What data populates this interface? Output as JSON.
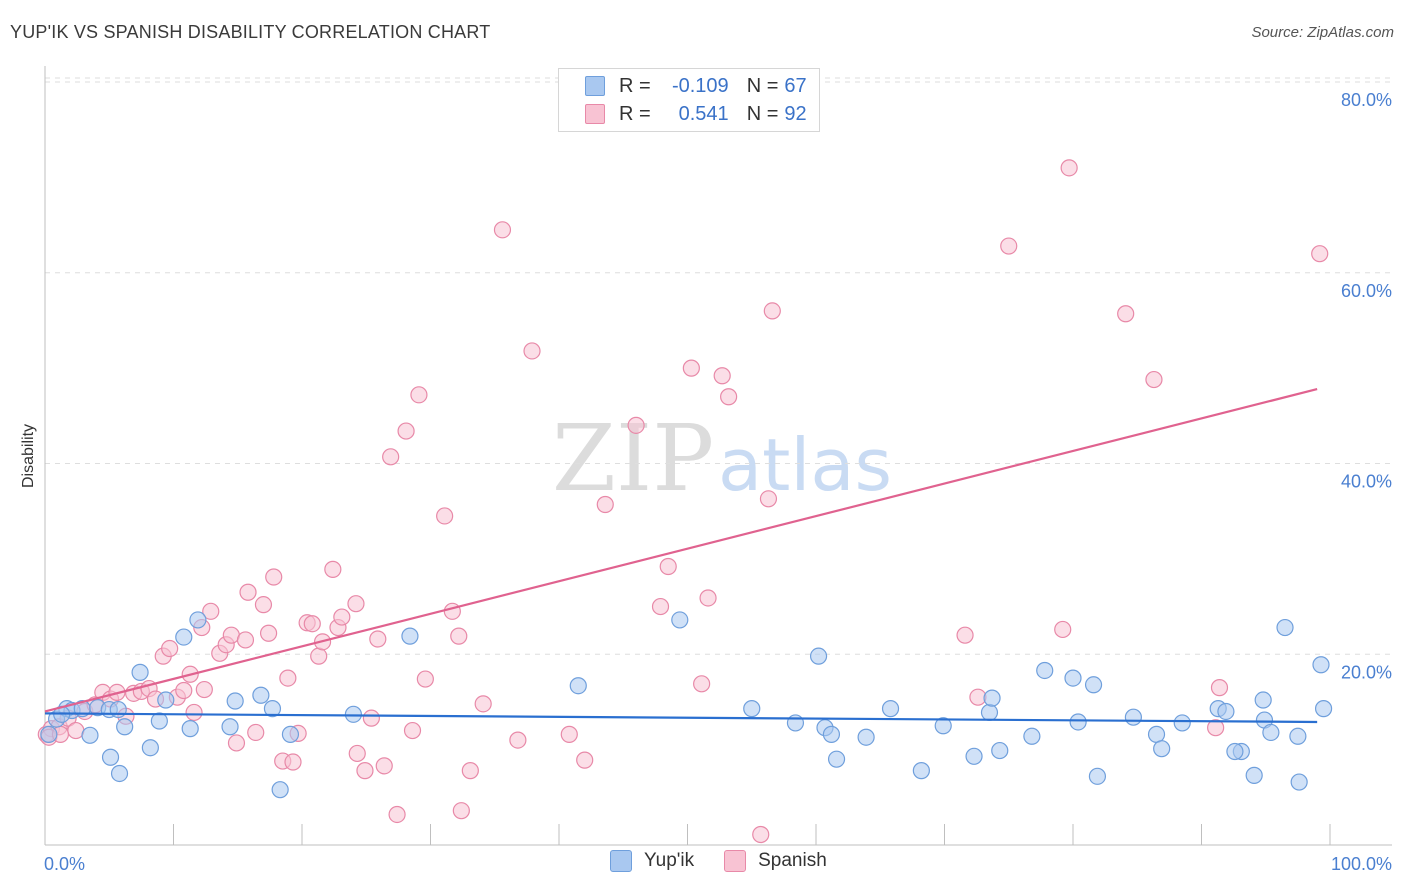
{
  "header": {
    "title": "YUP'IK VS SPANISH DISABILITY CORRELATION CHART",
    "source": "Source: ZipAtlas.com"
  },
  "watermark": {
    "zip": "ZIP",
    "atlas": "atlas"
  },
  "legend": {
    "rows": [
      {
        "r_label": "R =",
        "r_value": "-0.109",
        "n_label": "N =",
        "n_value": "67",
        "color": "#a9c8f0",
        "border": "#6f9fdc"
      },
      {
        "r_label": "R =",
        "r_value": "0.541",
        "n_label": "N =",
        "n_value": "92",
        "color": "#f8c3d3",
        "border": "#e889a8"
      }
    ]
  },
  "bottom_legend": {
    "items": [
      {
        "label": "Yup'ik"
      },
      {
        "label": "Spanish"
      }
    ]
  },
  "colors": {
    "yupik_fill": "#a9c8f0",
    "yupik_stroke": "#6f9fdc",
    "yupik_line": "#2a6fd0",
    "spanish_fill": "#f8c3d3",
    "spanish_stroke": "#e889a8",
    "spanish_line": "#e0628f",
    "tick_text": "#4a7fd0"
  },
  "chart_data": {
    "type": "scatter",
    "title": "YUP'IK VS SPANISH DISABILITY CORRELATION CHART",
    "xlabel": "",
    "ylabel": "Disability",
    "xlim": [
      0,
      100
    ],
    "ylim": [
      0,
      80
    ],
    "x_tick_labels": [
      "0.0%",
      "100.0%"
    ],
    "y_ticks": [
      20,
      40,
      60,
      80
    ],
    "y_tick_labels": [
      "20.0%",
      "40.0%",
      "60.0%",
      "80.0%"
    ],
    "grid": "horizontal dashed",
    "series": [
      {
        "name": "Yup'ik",
        "r": -0.109,
        "n": 67,
        "trend": {
          "x": [
            0,
            99
          ],
          "y": [
            13.8,
            12.9
          ]
        },
        "points": [
          [
            0.3,
            11.6
          ],
          [
            0.9,
            13.2
          ],
          [
            1.7,
            14.3
          ],
          [
            2.1,
            14.1
          ],
          [
            2.9,
            14.3
          ],
          [
            3.5,
            11.5
          ],
          [
            4.1,
            14.4
          ],
          [
            5.0,
            14.2
          ],
          [
            5.7,
            14.2
          ],
          [
            5.1,
            9.2
          ],
          [
            5.8,
            7.5
          ],
          [
            6.2,
            12.4
          ],
          [
            7.4,
            18.1
          ],
          [
            8.2,
            10.2
          ],
          [
            8.9,
            13.0
          ],
          [
            9.4,
            15.2
          ],
          [
            10.8,
            21.8
          ],
          [
            11.3,
            12.2
          ],
          [
            11.9,
            23.6
          ],
          [
            14.4,
            12.4
          ],
          [
            14.8,
            15.1
          ],
          [
            16.8,
            15.7
          ],
          [
            17.7,
            14.3
          ],
          [
            18.3,
            5.8
          ],
          [
            19.1,
            11.6
          ],
          [
            24.0,
            13.7
          ],
          [
            28.4,
            21.9
          ],
          [
            41.5,
            16.7
          ],
          [
            49.4,
            23.6
          ],
          [
            55.0,
            14.3
          ],
          [
            58.4,
            12.8
          ],
          [
            60.2,
            19.8
          ],
          [
            60.7,
            12.3
          ],
          [
            61.2,
            11.6
          ],
          [
            61.6,
            9.0
          ],
          [
            63.9,
            11.3
          ],
          [
            65.8,
            14.3
          ],
          [
            68.2,
            7.8
          ],
          [
            69.9,
            12.5
          ],
          [
            72.3,
            9.3
          ],
          [
            73.5,
            13.9
          ],
          [
            73.7,
            15.4
          ],
          [
            74.3,
            9.9
          ],
          [
            76.8,
            11.4
          ],
          [
            77.8,
            18.3
          ],
          [
            80.0,
            17.5
          ],
          [
            80.4,
            12.9
          ],
          [
            81.6,
            16.8
          ],
          [
            81.9,
            7.2
          ],
          [
            84.7,
            13.4
          ],
          [
            86.5,
            11.6
          ],
          [
            86.9,
            10.1
          ],
          [
            88.5,
            12.8
          ],
          [
            91.3,
            14.3
          ],
          [
            91.9,
            14.0
          ],
          [
            93.1,
            9.8
          ],
          [
            94.1,
            7.3
          ],
          [
            94.8,
            15.2
          ],
          [
            94.9,
            13.1
          ],
          [
            95.4,
            11.8
          ],
          [
            96.5,
            22.8
          ],
          [
            97.5,
            11.4
          ],
          [
            97.6,
            6.6
          ],
          [
            99.3,
            18.9
          ],
          [
            99.5,
            14.3
          ],
          [
            92.6,
            9.8
          ],
          [
            1.3,
            13.7
          ]
        ]
      },
      {
        "name": "Spanish",
        "r": 0.541,
        "n": 92,
        "trend": {
          "x": [
            0,
            99
          ],
          "y": [
            14.0,
            47.8
          ]
        },
        "points": [
          [
            0.1,
            11.6
          ],
          [
            0.5,
            12.2
          ],
          [
            1.1,
            12.4
          ],
          [
            1.8,
            13.3
          ],
          [
            2.4,
            12.0
          ],
          [
            3.1,
            14.0
          ],
          [
            3.9,
            14.7
          ],
          [
            4.5,
            16.0
          ],
          [
            5.1,
            15.3
          ],
          [
            5.6,
            16.0
          ],
          [
            6.3,
            13.5
          ],
          [
            6.9,
            15.9
          ],
          [
            7.5,
            16.1
          ],
          [
            8.1,
            16.4
          ],
          [
            8.6,
            15.3
          ],
          [
            9.2,
            19.8
          ],
          [
            9.7,
            20.6
          ],
          [
            10.3,
            15.5
          ],
          [
            10.8,
            16.2
          ],
          [
            11.3,
            17.9
          ],
          [
            11.6,
            13.9
          ],
          [
            12.2,
            22.8
          ],
          [
            12.4,
            16.3
          ],
          [
            12.9,
            24.5
          ],
          [
            13.6,
            20.1
          ],
          [
            14.1,
            21.0
          ],
          [
            14.5,
            22.0
          ],
          [
            14.9,
            10.7
          ],
          [
            15.6,
            21.5
          ],
          [
            15.8,
            26.5
          ],
          [
            16.4,
            11.8
          ],
          [
            17.0,
            25.2
          ],
          [
            17.4,
            22.2
          ],
          [
            17.8,
            28.1
          ],
          [
            18.5,
            8.8
          ],
          [
            18.9,
            17.5
          ],
          [
            19.3,
            8.7
          ],
          [
            19.7,
            11.7
          ],
          [
            20.4,
            23.3
          ],
          [
            20.8,
            23.2
          ],
          [
            21.3,
            19.8
          ],
          [
            21.6,
            21.3
          ],
          [
            22.4,
            28.9
          ],
          [
            22.8,
            22.8
          ],
          [
            23.1,
            23.9
          ],
          [
            24.2,
            25.3
          ],
          [
            24.3,
            9.6
          ],
          [
            24.9,
            7.8
          ],
          [
            25.4,
            13.3
          ],
          [
            25.9,
            21.6
          ],
          [
            26.4,
            8.3
          ],
          [
            26.9,
            40.7
          ],
          [
            27.4,
            3.2
          ],
          [
            28.1,
            43.4
          ],
          [
            28.6,
            12.0
          ],
          [
            29.1,
            47.2
          ],
          [
            29.6,
            17.4
          ],
          [
            31.1,
            34.5
          ],
          [
            31.7,
            24.5
          ],
          [
            32.2,
            21.9
          ],
          [
            32.4,
            3.6
          ],
          [
            33.1,
            7.8
          ],
          [
            34.1,
            14.8
          ],
          [
            35.6,
            64.5
          ],
          [
            36.8,
            11.0
          ],
          [
            37.9,
            51.8
          ],
          [
            40.8,
            11.6
          ],
          [
            42.0,
            8.9
          ],
          [
            43.6,
            35.7
          ],
          [
            46.0,
            44.0
          ],
          [
            47.9,
            25.0
          ],
          [
            48.5,
            29.2
          ],
          [
            50.3,
            50.0
          ],
          [
            51.1,
            16.9
          ],
          [
            51.6,
            25.9
          ],
          [
            52.7,
            49.2
          ],
          [
            53.2,
            47.0
          ],
          [
            55.7,
            1.1
          ],
          [
            56.3,
            36.3
          ],
          [
            56.6,
            56.0
          ],
          [
            71.6,
            22.0
          ],
          [
            72.6,
            15.5
          ],
          [
            75.0,
            62.8
          ],
          [
            79.2,
            22.6
          ],
          [
            79.7,
            71.0
          ],
          [
            84.1,
            55.7
          ],
          [
            86.3,
            48.8
          ],
          [
            91.4,
            16.5
          ],
          [
            91.1,
            12.3
          ],
          [
            99.2,
            62.0
          ],
          [
            0.3,
            11.3
          ],
          [
            1.2,
            11.6
          ]
        ]
      }
    ]
  }
}
